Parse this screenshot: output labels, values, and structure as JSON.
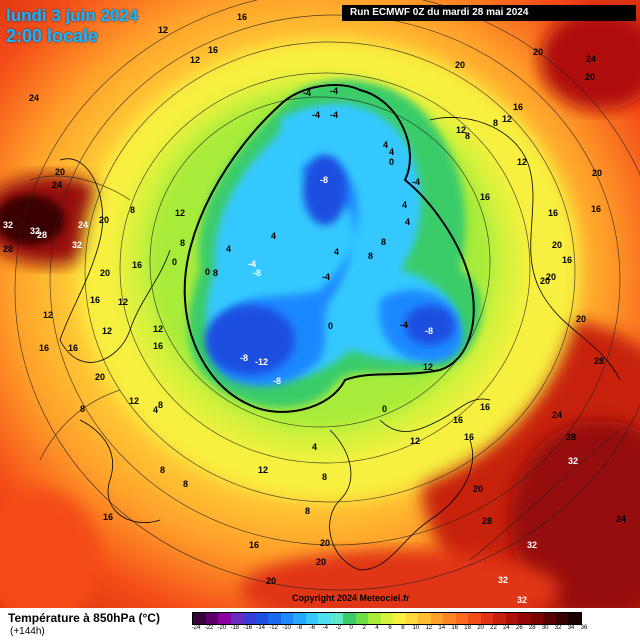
{
  "header": {
    "date": "lundi 3 juin 2024",
    "time": "2:00 locale",
    "run": "Run ECMWF 0Z du mardi 28 mai 2024"
  },
  "footer": {
    "copyright": "Copyright 2024 Meteociel.fr"
  },
  "legend": {
    "title": "Température à 850hPa (°C)",
    "subtitle": "(+144h)",
    "ticks": [
      "-24",
      "-22",
      "-20",
      "-18",
      "-16",
      "-14",
      "-12",
      "-10",
      "-8",
      "-6",
      "-4",
      "-2",
      "0",
      "2",
      "4",
      "6",
      "8",
      "10",
      "12",
      "14",
      "16",
      "18",
      "20",
      "22",
      "24",
      "26",
      "28",
      "30",
      "32",
      "34",
      "36"
    ],
    "colors": [
      "#3a0038",
      "#5c0068",
      "#8a00a0",
      "#6a2cc0",
      "#3c3cd8",
      "#1e50e0",
      "#1a6af0",
      "#1f88ff",
      "#25a8ff",
      "#36c8ff",
      "#4fe0f0",
      "#60e8c8",
      "#3acc6a",
      "#6ede44",
      "#a8ec3a",
      "#d8f23c",
      "#f8f040",
      "#ffd83a",
      "#ffbe30",
      "#ffa02a",
      "#ff8424",
      "#ff6a1e",
      "#f44c18",
      "#e03414",
      "#c8200e",
      "#b0100a",
      "#960808",
      "#7a0404",
      "#5a0202",
      "#3a0000",
      "#1a0000"
    ]
  },
  "map_labels": [
    {
      "t": "16"
    },
    {
      "t": "12"
    },
    {
      "t": "16"
    },
    {
      "t": "12"
    },
    {
      "t": "20"
    },
    {
      "t": "20"
    },
    {
      "t": "24"
    },
    {
      "t": "20"
    },
    {
      "t": "24"
    },
    {
      "t": "32"
    },
    {
      "t": "28"
    },
    {
      "t": "32"
    },
    {
      "t": "24"
    },
    {
      "t": "32"
    },
    {
      "t": "28"
    },
    {
      "t": "20"
    },
    {
      "t": "12"
    },
    {
      "t": "16"
    },
    {
      "t": "20"
    },
    {
      "t": "16"
    },
    {
      "t": "20"
    },
    {
      "t": "16"
    },
    {
      "t": "12"
    },
    {
      "t": "12"
    },
    {
      "t": "16"
    },
    {
      "t": "12"
    },
    {
      "t": "8"
    },
    {
      "t": "4"
    },
    {
      "t": "0"
    },
    {
      "t": "8"
    },
    {
      "t": "4"
    },
    {
      "t": "0"
    },
    {
      "t": "-4"
    },
    {
      "t": "-4"
    },
    {
      "t": "-4"
    },
    {
      "t": "-4"
    },
    {
      "t": "-8"
    },
    {
      "t": "-4"
    },
    {
      "t": "-8"
    },
    {
      "t": "-8"
    },
    {
      "t": "-12"
    },
    {
      "t": "-8"
    },
    {
      "t": "-4"
    },
    {
      "t": "-8"
    },
    {
      "t": "-4"
    },
    {
      "t": "0"
    },
    {
      "t": "4"
    },
    {
      "t": "8"
    },
    {
      "t": "8"
    },
    {
      "t": "12"
    },
    {
      "t": "16"
    },
    {
      "t": "20"
    },
    {
      "t": "16"
    },
    {
      "t": "20"
    },
    {
      "t": "28"
    },
    {
      "t": "28"
    },
    {
      "t": "32"
    },
    {
      "t": "28"
    },
    {
      "t": "32"
    },
    {
      "t": "24"
    },
    {
      "t": "20"
    },
    {
      "t": "20"
    },
    {
      "t": "16"
    },
    {
      "t": "12"
    },
    {
      "t": "16"
    },
    {
      "t": "8"
    },
    {
      "t": "8"
    },
    {
      "t": "12"
    },
    {
      "t": "16"
    },
    {
      "t": "20"
    },
    {
      "t": "24"
    },
    {
      "t": "32"
    },
    {
      "t": "20"
    },
    {
      "t": "20"
    },
    {
      "t": "16"
    },
    {
      "t": "12"
    },
    {
      "t": "8"
    },
    {
      "t": "8"
    },
    {
      "t": "4"
    },
    {
      "t": "0"
    },
    {
      "t": "4"
    },
    {
      "t": "8"
    },
    {
      "t": "12"
    },
    {
      "t": "16"
    },
    {
      "t": "20"
    },
    {
      "t": "4"
    },
    {
      "t": "8"
    },
    {
      "t": "12"
    },
    {
      "t": "16"
    },
    {
      "t": "16"
    },
    {
      "t": "20"
    },
    {
      "t": "16"
    },
    {
      "t": "16"
    },
    {
      "t": "12"
    },
    {
      "t": "8"
    },
    {
      "t": "8"
    },
    {
      "t": "4"
    },
    {
      "t": "4"
    },
    {
      "t": "-4"
    },
    {
      "t": "0"
    },
    {
      "t": "4"
    },
    {
      "t": "8"
    },
    {
      "t": "12"
    },
    {
      "t": "20"
    },
    {
      "t": "32"
    },
    {
      "t": "24"
    }
  ]
}
